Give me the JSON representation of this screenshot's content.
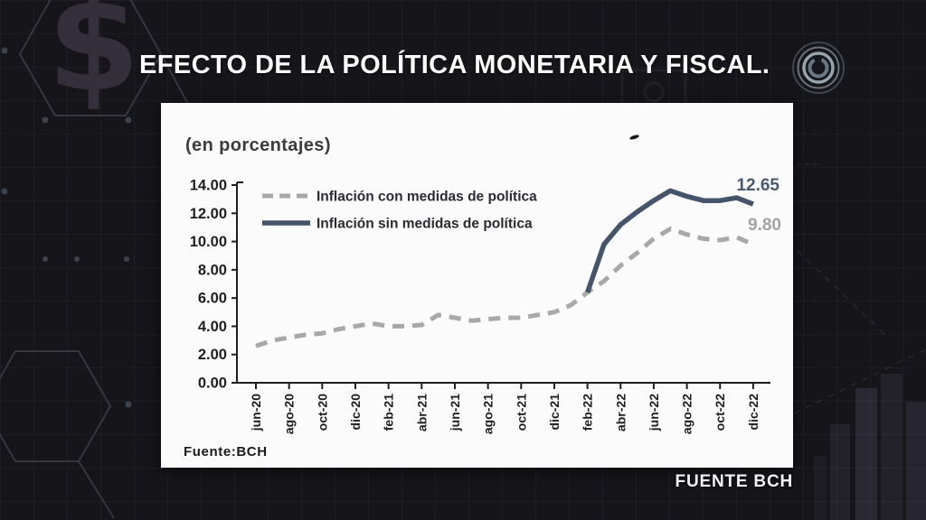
{
  "title": "EFECTO DE LA POLÍTICA MONETARIA Y FISCAL.",
  "source_banner": "FUENTE BCH",
  "chart_card": {
    "subtitle": "(en porcentajes)",
    "source_note": "Fuente:BCH"
  },
  "colors": {
    "background": "#15151a",
    "card": "#fbfbfb",
    "axis": "#1f1f1f",
    "series_con_medidas": "#a8a8a8",
    "series_sin_medidas": "#44546a",
    "end_label_dark": "#4a5a6e",
    "end_label_gray": "#a3a3a3",
    "legend_text": "#2b2b33"
  },
  "chart_data": {
    "type": "line",
    "title": "",
    "subtitle": "(en porcentajes)",
    "source": "Fuente:BCH",
    "grid": false,
    "legend_position": "top-left",
    "ylim": [
      0,
      14
    ],
    "ytick_step": 2,
    "ytick_labels": [
      "0.00",
      "2.00",
      "4.00",
      "6.00",
      "8.00",
      "10.00",
      "12.00",
      "14.00"
    ],
    "x": [
      "jun-20",
      "jul-20",
      "ago-20",
      "sep-20",
      "oct-20",
      "nov-20",
      "dic-20",
      "ene-21",
      "feb-21",
      "mar-21",
      "abr-21",
      "may-21",
      "jun-21",
      "jul-21",
      "ago-21",
      "sep-21",
      "oct-21",
      "nov-21",
      "dic-21",
      "ene-22",
      "feb-22",
      "mar-22",
      "abr-22",
      "may-22",
      "jun-22",
      "jul-22",
      "ago-22",
      "sep-22",
      "oct-22",
      "nov-22",
      "dic-22"
    ],
    "xtick_labels": [
      "jun-20",
      "ago-20",
      "oct-20",
      "dic-20",
      "feb-21",
      "abr-21",
      "jun-21",
      "ago-21",
      "oct-21",
      "dic-21",
      "feb-22",
      "abr-22",
      "jun-22",
      "ago-22",
      "oct-22",
      "dic-22"
    ],
    "series": [
      {
        "name": "Inflación con medidas de política",
        "style": "dashed",
        "color": "#a8a8a8",
        "start_index": 0,
        "end_label": "9.80",
        "values": [
          2.6,
          3.0,
          3.2,
          3.4,
          3.5,
          3.8,
          4.0,
          4.2,
          4.0,
          4.0,
          4.1,
          4.8,
          4.6,
          4.4,
          4.5,
          4.6,
          4.6,
          4.8,
          5.0,
          5.5,
          6.4,
          7.2,
          8.3,
          9.2,
          10.2,
          10.9,
          10.5,
          10.2,
          10.1,
          10.3,
          9.8
        ]
      },
      {
        "name": "Inflación sin medidas de política",
        "style": "solid",
        "color": "#44546a",
        "start_index": 20,
        "end_label": "12.65",
        "values": [
          6.4,
          9.8,
          11.2,
          12.1,
          12.9,
          13.6,
          13.2,
          12.9,
          12.9,
          13.1,
          12.65
        ]
      }
    ]
  }
}
